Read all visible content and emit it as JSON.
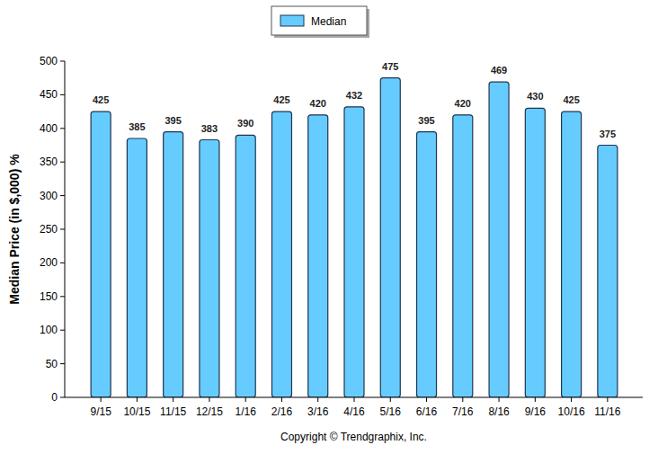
{
  "chart_data": {
    "type": "bar",
    "y_label": "Median Price (in $,000) %",
    "footer": "Copyright © Trendgraphix, Inc.",
    "categories": [
      "9/15",
      "10/15",
      "11/15",
      "12/15",
      "1/16",
      "2/16",
      "3/16",
      "4/16",
      "5/16",
      "6/16",
      "7/16",
      "8/16",
      "9/16",
      "10/16",
      "11/16"
    ],
    "series": [
      {
        "name": "Median",
        "color": "#66ccff",
        "values": [
          425,
          385,
          395,
          383,
          390,
          425,
          420,
          432,
          475,
          395,
          420,
          469,
          430,
          425,
          375
        ]
      }
    ],
    "ylim": [
      0,
      500
    ],
    "yticks": [
      0,
      50,
      100,
      150,
      200,
      250,
      300,
      350,
      400,
      450,
      500
    ],
    "grid": false,
    "legend": "top",
    "data_labels": true
  }
}
